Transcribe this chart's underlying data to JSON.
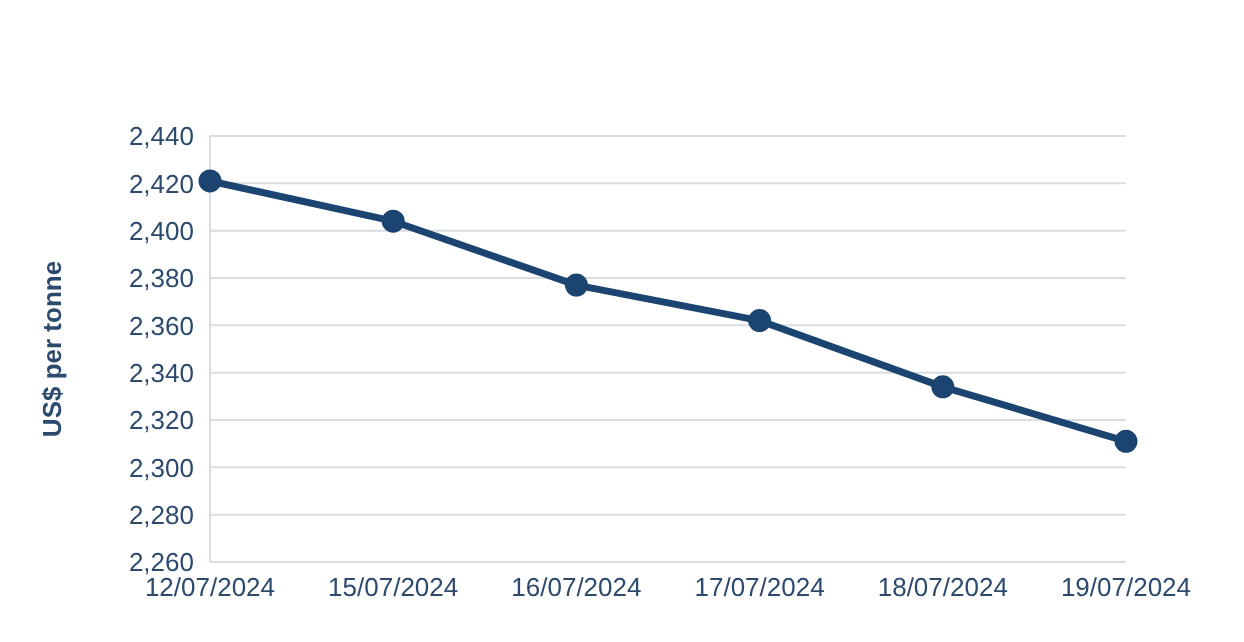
{
  "chart_data": {
    "type": "line",
    "ylabel": "US$ per tonne",
    "categories": [
      "12/07/2024",
      "15/07/2024",
      "16/07/2024",
      "17/07/2024",
      "18/07/2024",
      "19/07/2024"
    ],
    "series": [
      {
        "color": "#1b4470",
        "values": [
          2421,
          2404,
          2377,
          2362,
          2334,
          2311
        ]
      }
    ],
    "ylim": [
      2260,
      2440
    ],
    "yticks": [
      {
        "value": 2260,
        "label": "2,260"
      },
      {
        "value": 2280,
        "label": "2,280"
      },
      {
        "value": 2300,
        "label": "2,300"
      },
      {
        "value": 2320,
        "label": "2,320"
      },
      {
        "value": 2340,
        "label": "2,340"
      },
      {
        "value": 2360,
        "label": "2,360"
      },
      {
        "value": 2380,
        "label": "2,380"
      },
      {
        "value": 2400,
        "label": "2,400"
      },
      {
        "value": 2420,
        "label": "2,420"
      },
      {
        "value": 2440,
        "label": "2,440"
      }
    ],
    "grid": "y",
    "legend": false,
    "marker": "circle",
    "line_style": "solid"
  }
}
